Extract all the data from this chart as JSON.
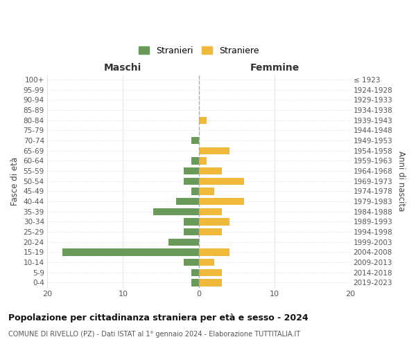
{
  "age_groups": [
    "0-4",
    "5-9",
    "10-14",
    "15-19",
    "20-24",
    "25-29",
    "30-34",
    "35-39",
    "40-44",
    "45-49",
    "50-54",
    "55-59",
    "60-64",
    "65-69",
    "70-74",
    "75-79",
    "80-84",
    "85-89",
    "90-94",
    "95-99",
    "100+"
  ],
  "birth_years": [
    "2019-2023",
    "2014-2018",
    "2009-2013",
    "2004-2008",
    "1999-2003",
    "1994-1998",
    "1989-1993",
    "1984-1988",
    "1979-1983",
    "1974-1978",
    "1969-1973",
    "1964-1968",
    "1959-1963",
    "1954-1958",
    "1949-1953",
    "1944-1948",
    "1939-1943",
    "1934-1938",
    "1929-1933",
    "1924-1928",
    "≤ 1923"
  ],
  "stranieri": [
    1,
    1,
    2,
    18,
    4,
    2,
    2,
    6,
    3,
    1,
    2,
    2,
    1,
    0,
    1,
    0,
    0,
    0,
    0,
    0,
    0
  ],
  "straniere": [
    3,
    3,
    2,
    4,
    0,
    3,
    4,
    3,
    6,
    2,
    6,
    3,
    1,
    4,
    0,
    0,
    1,
    0,
    0,
    0,
    0
  ],
  "color_stranieri": "#6a9a5a",
  "color_straniere": "#f0b93a",
  "title": "Popolazione per cittadinanza straniera per età e sesso - 2024",
  "subtitle": "COMUNE DI RIVELLO (PZ) - Dati ISTAT al 1° gennaio 2024 - Elaborazione TUTTITALIA.IT",
  "xlabel_left": "Maschi",
  "xlabel_right": "Femmine",
  "ylabel_left": "Fasce di età",
  "ylabel_right": "Anni di nascita",
  "legend_stranieri": "Stranieri",
  "legend_straniere": "Straniere",
  "xlim": 20,
  "background_color": "#ffffff",
  "grid_color": "#cccccc"
}
